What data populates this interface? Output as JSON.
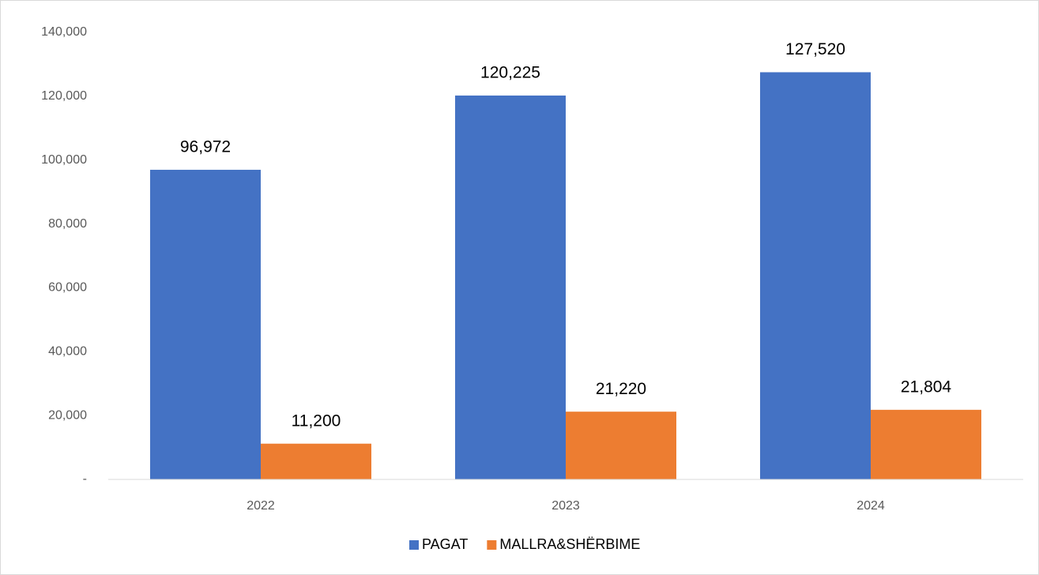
{
  "chart_data": {
    "type": "bar",
    "categories": [
      "2022",
      "2023",
      "2024"
    ],
    "series": [
      {
        "name": "PAGAT",
        "color": "#4472c4",
        "values": [
          96972,
          120225,
          127520
        ],
        "value_labels": [
          "96,972",
          "120,225",
          "127,520"
        ]
      },
      {
        "name": "MALLRA&SHËRBIME",
        "color": "#ed7d31",
        "values": [
          11200,
          21220,
          21804
        ],
        "value_labels": [
          "11,200",
          "21,220",
          "21,804"
        ]
      }
    ],
    "ylim": [
      0,
      140000
    ],
    "yticks": [
      {
        "value": 0,
        "label": "-"
      },
      {
        "value": 20000,
        "label": "20,000"
      },
      {
        "value": 40000,
        "label": "40,000"
      },
      {
        "value": 60000,
        "label": "60,000"
      },
      {
        "value": 80000,
        "label": "80,000"
      },
      {
        "value": 100000,
        "label": "100,000"
      },
      {
        "value": 120000,
        "label": "120,000"
      },
      {
        "value": 140000,
        "label": "140,000"
      }
    ],
    "grid": false,
    "legend": "bottom"
  }
}
